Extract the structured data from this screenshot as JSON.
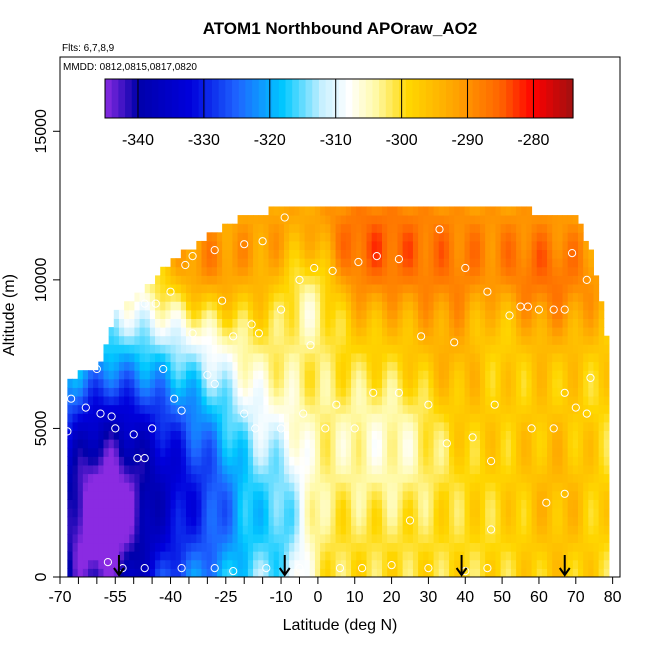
{
  "chart_data": {
    "type": "heatmap",
    "title": "ATOM1 Northbound APOraw_AO2",
    "annotations": {
      "flights": "Flts: 6,7,8,9",
      "dates": "MMDD: 0812,0815,0817,0820"
    },
    "xlabel": "Latitude (deg N)",
    "ylabel": "Altitude (m)",
    "xlim": [
      -70,
      82
    ],
    "ylim": [
      0,
      17500
    ],
    "x_ticks": [
      -70,
      -55,
      -40,
      -25,
      -10,
      0,
      10,
      20,
      30,
      40,
      50,
      60,
      70,
      80
    ],
    "x_tick_labels": [
      "-70",
      "-55",
      "-40",
      "-25",
      "-10",
      "0",
      "10",
      "20",
      "30",
      "40",
      "50",
      "60",
      "70",
      "80"
    ],
    "x_minor_ticks": [
      -65,
      -60,
      -50,
      -45,
      -35,
      -30,
      -20,
      -15,
      -5
    ],
    "y_ticks": [
      0,
      5000,
      10000,
      15000
    ],
    "y_tick_labels": [
      "0",
      "5000",
      "10000",
      "15000"
    ],
    "colorbar": {
      "range": [
        -345,
        -274
      ],
      "ticks": [
        -340,
        -330,
        -320,
        -310,
        -300,
        -290,
        -280
      ],
      "tick_labels": [
        "-340",
        "-330",
        "-320",
        "-310",
        "-300",
        "-290",
        "-280"
      ],
      "colors": [
        "#8a2be2",
        "#0000b4",
        "#0000d2",
        "#1e64ff",
        "#00c8ff",
        "#ffffff",
        "#fff5a0",
        "#ffd700",
        "#ffa500",
        "#ff6400",
        "#ff0000",
        "#a01010"
      ]
    },
    "field": {
      "description_domain_x": [
        -68,
        79
      ],
      "top_altitude_at_latitude": [
        [
          -68,
          6500
        ],
        [
          -59,
          7000
        ],
        [
          -55,
          8800
        ],
        [
          -50,
          9300
        ],
        [
          -45,
          9800
        ],
        [
          -40,
          10500
        ],
        [
          -35,
          10900
        ],
        [
          -30,
          11300
        ],
        [
          -25,
          11700
        ],
        [
          -20,
          12000
        ],
        [
          -10,
          12300
        ],
        [
          -5,
          12400
        ],
        [
          40,
          12400
        ],
        [
          55,
          12400
        ],
        [
          60,
          12000
        ],
        [
          70,
          12000
        ],
        [
          75,
          10500
        ],
        [
          79,
          7500
        ]
      ]
    },
    "arrows_latitude": [
      -54,
      -9,
      39,
      67
    ],
    "observation_points": [
      {
        "x": -67,
        "y": 6000
      },
      {
        "x": -68,
        "y": 4900
      },
      {
        "x": -63,
        "y": 5700
      },
      {
        "x": -60,
        "y": 7000
      },
      {
        "x": -59,
        "y": 5500
      },
      {
        "x": -56,
        "y": 5400
      },
      {
        "x": -55,
        "y": 5000
      },
      {
        "x": -50,
        "y": 4800
      },
      {
        "x": -49,
        "y": 4000
      },
      {
        "x": -47,
        "y": 4000
      },
      {
        "x": -45,
        "y": 5000
      },
      {
        "x": -53,
        "y": 300
      },
      {
        "x": -47,
        "y": 300
      },
      {
        "x": -37,
        "y": 5600
      },
      {
        "x": -30,
        "y": 6800
      },
      {
        "x": -28,
        "y": 6500
      },
      {
        "x": -20,
        "y": 5500
      },
      {
        "x": -17,
        "y": 5000
      },
      {
        "x": -10,
        "y": 5000
      },
      {
        "x": -4,
        "y": 5500
      },
      {
        "x": 2,
        "y": 5000
      },
      {
        "x": 5,
        "y": 5800
      },
      {
        "x": 10,
        "y": 5000
      },
      {
        "x": 15,
        "y": 6200
      },
      {
        "x": 22,
        "y": 6200
      },
      {
        "x": 30,
        "y": 5800
      },
      {
        "x": 35,
        "y": 4500
      },
      {
        "x": 42,
        "y": 4700
      },
      {
        "x": 48,
        "y": 5800
      },
      {
        "x": 58,
        "y": 5000
      },
      {
        "x": 64,
        "y": 5000
      },
      {
        "x": 67,
        "y": 6200
      },
      {
        "x": 70,
        "y": 5700
      },
      {
        "x": 73,
        "y": 5500
      },
      {
        "x": 74,
        "y": 6700
      },
      {
        "x": 47,
        "y": 3900
      },
      {
        "x": 62,
        "y": 2500
      },
      {
        "x": 67,
        "y": 2800
      },
      {
        "x": -57,
        "y": 500
      },
      {
        "x": -37,
        "y": 300
      },
      {
        "x": -28,
        "y": 300
      },
      {
        "x": -23,
        "y": 200
      },
      {
        "x": -14,
        "y": 300
      },
      {
        "x": -5,
        "y": 300
      },
      {
        "x": 6,
        "y": 300
      },
      {
        "x": 12,
        "y": 300
      },
      {
        "x": 20,
        "y": 400
      },
      {
        "x": 30,
        "y": 300
      },
      {
        "x": 40,
        "y": 200
      },
      {
        "x": 46,
        "y": 300
      },
      {
        "x": 25,
        "y": 1900
      },
      {
        "x": 47,
        "y": 1600
      },
      {
        "x": -40,
        "y": 9600
      },
      {
        "x": -44,
        "y": 9200
      },
      {
        "x": -47,
        "y": 9200
      },
      {
        "x": -36,
        "y": 10500
      },
      {
        "x": -34,
        "y": 10800
      },
      {
        "x": -28,
        "y": 11000
      },
      {
        "x": -20,
        "y": 11200
      },
      {
        "x": -15,
        "y": 11300
      },
      {
        "x": -9,
        "y": 12100
      },
      {
        "x": -23,
        "y": 8100
      },
      {
        "x": -18,
        "y": 8500
      },
      {
        "x": -16,
        "y": 8200
      },
      {
        "x": -10,
        "y": 9000
      },
      {
        "x": -2,
        "y": 7800
      },
      {
        "x": -5,
        "y": 10000
      },
      {
        "x": -1,
        "y": 10400
      },
      {
        "x": 4,
        "y": 10300
      },
      {
        "x": 11,
        "y": 10600
      },
      {
        "x": 16,
        "y": 10800
      },
      {
        "x": 22,
        "y": 10700
      },
      {
        "x": 33,
        "y": 11700
      },
      {
        "x": 40,
        "y": 10400
      },
      {
        "x": 46,
        "y": 9600
      },
      {
        "x": 52,
        "y": 8800
      },
      {
        "x": 55,
        "y": 9100
      },
      {
        "x": 57,
        "y": 9100
      },
      {
        "x": 60,
        "y": 9000
      },
      {
        "x": 64,
        "y": 9000
      },
      {
        "x": 67,
        "y": 9000
      },
      {
        "x": 69,
        "y": 10900
      },
      {
        "x": 73,
        "y": 10000
      },
      {
        "x": 77,
        "y": 10300
      },
      {
        "x": 76,
        "y": 11900
      },
      {
        "x": 37,
        "y": 7900
      },
      {
        "x": 28,
        "y": 8100
      },
      {
        "x": -26,
        "y": 9300
      },
      {
        "x": -34,
        "y": 8200
      },
      {
        "x": -42,
        "y": 7000
      },
      {
        "x": -39,
        "y": 6000
      }
    ]
  }
}
